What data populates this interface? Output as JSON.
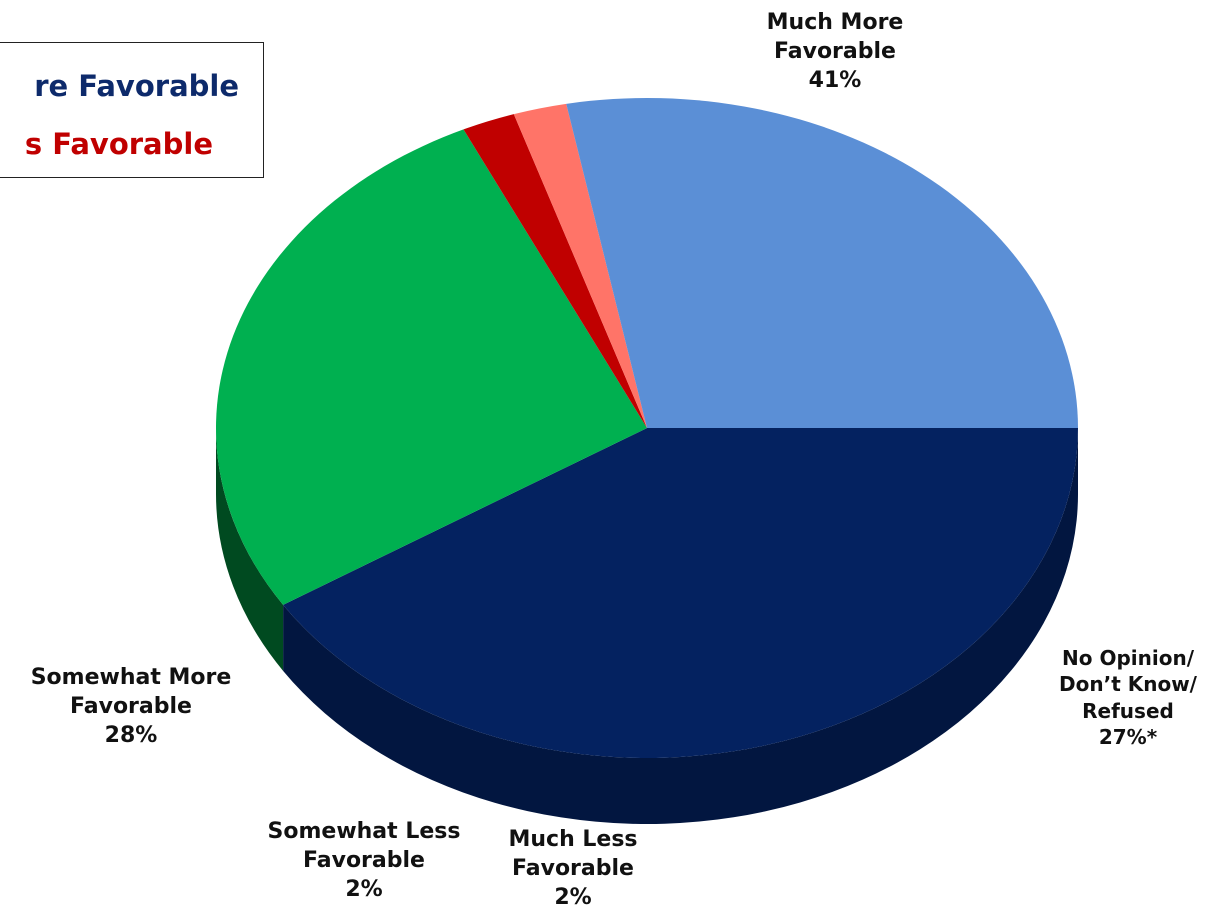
{
  "legend": {
    "line1": "re Favorable",
    "line2": "s Favorable"
  },
  "chart_data": {
    "type": "pie",
    "title": "",
    "slices": [
      {
        "name_lines": [
          "Much More",
          "Favorable"
        ],
        "pct_label": "41%",
        "value": 41,
        "color": "#042260",
        "side_color": "#021640"
      },
      {
        "name_lines": [
          "No Opinion/",
          "Don’t Know/",
          "Refused"
        ],
        "pct_label": "27%*",
        "value": 27,
        "color": "#00b050",
        "side_color": "#004a20"
      },
      {
        "name_lines": [
          "Much Less",
          "Favorable"
        ],
        "pct_label": "2%",
        "value": 2,
        "color": "#c00000",
        "side_color": "#5a0000"
      },
      {
        "name_lines": [
          "Somewhat Less",
          "Favorable"
        ],
        "pct_label": "2%",
        "value": 2,
        "color": "#ff7468",
        "side_color": "#7a3a36"
      },
      {
        "name_lines": [
          "Somewhat More",
          "Favorable"
        ],
        "pct_label": "28%",
        "value": 28,
        "color": "#5b8fd6",
        "side_color": "#2f4f80"
      }
    ]
  }
}
